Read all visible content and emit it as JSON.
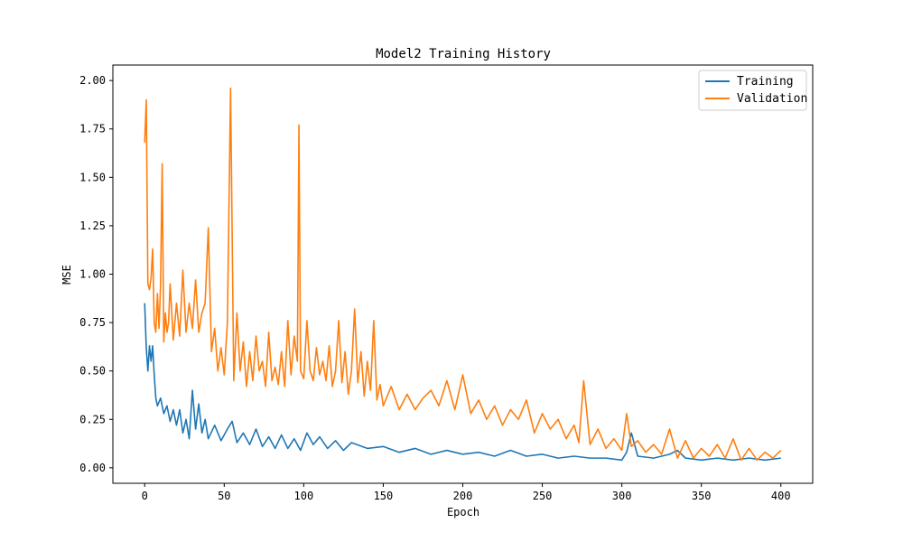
{
  "chart_data": {
    "type": "line",
    "title": "Model2 Training History",
    "xlabel": "Epoch",
    "ylabel": "MSE",
    "xlim": [
      -20,
      420
    ],
    "ylim": [
      -0.08,
      2.08
    ],
    "xticks": [
      0,
      50,
      100,
      150,
      200,
      250,
      300,
      350,
      400
    ],
    "xtick_labels": [
      "0",
      "50",
      "100",
      "150",
      "200",
      "250",
      "300",
      "350",
      "400"
    ],
    "yticks": [
      0.0,
      0.25,
      0.5,
      0.75,
      1.0,
      1.25,
      1.5,
      1.75,
      2.0
    ],
    "ytick_labels": [
      "0.00",
      "0.25",
      "0.50",
      "0.75",
      "1.00",
      "1.25",
      "1.50",
      "1.75",
      "2.00"
    ],
    "grid": false,
    "legend": "top-right",
    "series": [
      {
        "name": "Training",
        "color": "#1f77b4",
        "x": [
          0,
          1,
          2,
          3,
          4,
          5,
          6,
          7,
          8,
          10,
          12,
          14,
          16,
          18,
          20,
          22,
          24,
          26,
          28,
          30,
          32,
          34,
          36,
          38,
          40,
          44,
          48,
          52,
          55,
          58,
          62,
          66,
          70,
          74,
          78,
          82,
          86,
          90,
          94,
          98,
          102,
          106,
          110,
          115,
          120,
          125,
          130,
          140,
          150,
          160,
          170,
          180,
          190,
          200,
          210,
          220,
          230,
          240,
          250,
          260,
          270,
          280,
          290,
          300,
          303,
          306,
          310,
          320,
          330,
          335,
          340,
          350,
          360,
          370,
          380,
          390,
          400
        ],
        "y": [
          0.85,
          0.62,
          0.5,
          0.63,
          0.55,
          0.63,
          0.48,
          0.36,
          0.32,
          0.36,
          0.28,
          0.32,
          0.24,
          0.3,
          0.22,
          0.3,
          0.18,
          0.25,
          0.15,
          0.4,
          0.2,
          0.33,
          0.18,
          0.25,
          0.15,
          0.22,
          0.14,
          0.2,
          0.24,
          0.13,
          0.18,
          0.12,
          0.2,
          0.11,
          0.16,
          0.1,
          0.17,
          0.1,
          0.15,
          0.09,
          0.18,
          0.12,
          0.16,
          0.1,
          0.14,
          0.09,
          0.13,
          0.1,
          0.11,
          0.08,
          0.1,
          0.07,
          0.09,
          0.07,
          0.08,
          0.06,
          0.09,
          0.06,
          0.07,
          0.05,
          0.06,
          0.05,
          0.05,
          0.04,
          0.08,
          0.18,
          0.06,
          0.05,
          0.07,
          0.09,
          0.05,
          0.04,
          0.05,
          0.04,
          0.05,
          0.04,
          0.05
        ]
      },
      {
        "name": "Validation",
        "color": "#ff7f0e",
        "x": [
          0,
          1,
          2,
          3,
          4,
          5,
          6,
          7,
          8,
          9,
          10,
          11,
          12,
          13,
          14,
          15,
          16,
          18,
          20,
          22,
          24,
          26,
          28,
          30,
          32,
          34,
          36,
          38,
          40,
          42,
          44,
          46,
          48,
          50,
          52,
          54,
          56,
          58,
          60,
          62,
          64,
          66,
          68,
          70,
          72,
          74,
          76,
          78,
          80,
          82,
          84,
          86,
          88,
          90,
          92,
          94,
          96,
          97,
          98,
          100,
          102,
          104,
          106,
          108,
          110,
          112,
          114,
          116,
          118,
          120,
          122,
          124,
          126,
          128,
          130,
          132,
          134,
          136,
          138,
          140,
          142,
          144,
          146,
          148,
          150,
          155,
          160,
          165,
          170,
          175,
          180,
          185,
          190,
          195,
          200,
          205,
          210,
          215,
          220,
          225,
          230,
          235,
          240,
          245,
          250,
          255,
          260,
          265,
          270,
          273,
          276,
          280,
          285,
          290,
          295,
          300,
          303,
          306,
          310,
          315,
          320,
          325,
          330,
          335,
          340,
          345,
          350,
          355,
          360,
          365,
          370,
          375,
          380,
          385,
          390,
          395,
          400
        ],
        "y": [
          1.68,
          1.9,
          0.95,
          0.92,
          0.98,
          1.13,
          0.75,
          0.7,
          0.9,
          0.72,
          0.95,
          1.57,
          0.65,
          0.8,
          0.7,
          0.75,
          0.95,
          0.66,
          0.85,
          0.68,
          1.02,
          0.7,
          0.85,
          0.72,
          0.97,
          0.7,
          0.8,
          0.85,
          1.24,
          0.6,
          0.72,
          0.5,
          0.62,
          0.48,
          0.75,
          1.96,
          0.45,
          0.8,
          0.5,
          0.65,
          0.42,
          0.6,
          0.45,
          0.68,
          0.5,
          0.55,
          0.42,
          0.7,
          0.45,
          0.52,
          0.43,
          0.6,
          0.42,
          0.76,
          0.48,
          0.68,
          0.55,
          1.77,
          0.5,
          0.46,
          0.76,
          0.5,
          0.45,
          0.62,
          0.48,
          0.55,
          0.45,
          0.63,
          0.42,
          0.5,
          0.76,
          0.44,
          0.6,
          0.38,
          0.5,
          0.82,
          0.44,
          0.6,
          0.37,
          0.55,
          0.4,
          0.76,
          0.35,
          0.43,
          0.32,
          0.42,
          0.3,
          0.38,
          0.3,
          0.36,
          0.4,
          0.32,
          0.45,
          0.3,
          0.48,
          0.28,
          0.35,
          0.25,
          0.32,
          0.22,
          0.3,
          0.25,
          0.35,
          0.18,
          0.28,
          0.2,
          0.25,
          0.15,
          0.22,
          0.13,
          0.45,
          0.12,
          0.2,
          0.1,
          0.15,
          0.09,
          0.28,
          0.11,
          0.14,
          0.08,
          0.12,
          0.07,
          0.2,
          0.05,
          0.14,
          0.05,
          0.1,
          0.06,
          0.12,
          0.05,
          0.15,
          0.04,
          0.1,
          0.04,
          0.08,
          0.05,
          0.09
        ]
      }
    ]
  }
}
